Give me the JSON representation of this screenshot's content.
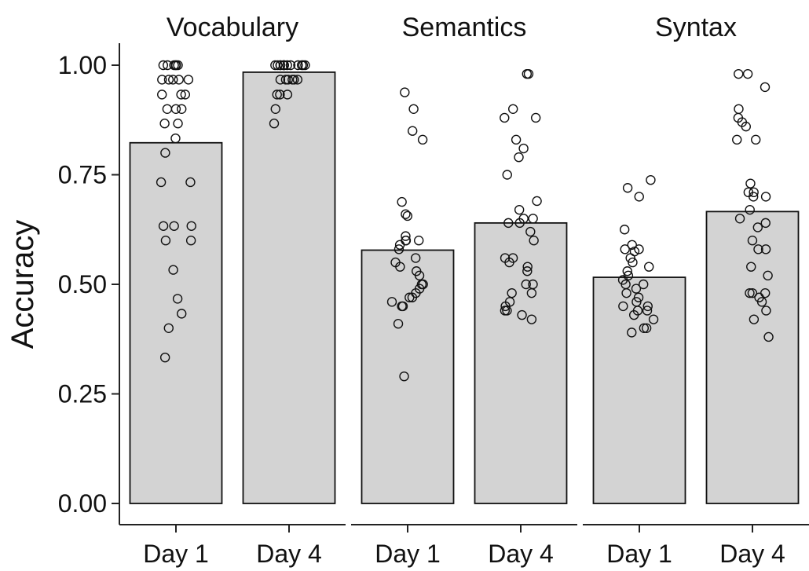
{
  "chart_data": {
    "type": "bar",
    "ylabel": "Accuracy",
    "ylim": [
      0,
      1.0
    ],
    "yticks": [
      0.0,
      0.25,
      0.5,
      0.75,
      1.0
    ],
    "ytick_labels": [
      "0.00",
      "0.25",
      "0.50",
      "0.75",
      "1.00"
    ],
    "grid": false,
    "bar_color": "#d3d3d3",
    "point_style": "open-circle",
    "panels": [
      {
        "title": "Vocabulary",
        "categories": [
          "Day 1",
          "Day 4"
        ],
        "values": [
          0.823,
          0.984
        ],
        "points": [
          [
            1.0,
            1.0,
            1.0,
            1.0,
            1.0,
            1.0,
            0.967,
            0.967,
            0.967,
            0.967,
            0.967,
            0.933,
            0.933,
            0.933,
            0.9,
            0.9,
            0.9,
            0.867,
            0.867,
            0.833,
            0.8,
            0.733,
            0.733,
            0.633,
            0.633,
            0.633,
            0.6,
            0.6,
            0.533,
            0.467,
            0.433,
            0.4,
            0.333
          ],
          [
            1.0,
            1.0,
            1.0,
            1.0,
            1.0,
            1.0,
            1.0,
            1.0,
            1.0,
            1.0,
            1.0,
            1.0,
            1.0,
            0.967,
            0.967,
            0.967,
            0.967,
            0.967,
            0.967,
            0.933,
            0.933,
            0.933,
            0.9,
            0.867
          ]
        ]
      },
      {
        "title": "Semantics",
        "categories": [
          "Day 1",
          "Day 4"
        ],
        "values": [
          0.578,
          0.64
        ],
        "points": [
          [
            0.938,
            0.9,
            0.85,
            0.83,
            0.688,
            0.66,
            0.656,
            0.61,
            0.6,
            0.6,
            0.6,
            0.59,
            0.58,
            0.56,
            0.55,
            0.54,
            0.53,
            0.52,
            0.5,
            0.5,
            0.49,
            0.48,
            0.47,
            0.47,
            0.46,
            0.45,
            0.45,
            0.41,
            0.29
          ],
          [
            0.98,
            0.98,
            0.9,
            0.88,
            0.88,
            0.83,
            0.81,
            0.79,
            0.75,
            0.69,
            0.67,
            0.65,
            0.65,
            0.64,
            0.64,
            0.62,
            0.6,
            0.56,
            0.56,
            0.55,
            0.54,
            0.53,
            0.5,
            0.5,
            0.48,
            0.48,
            0.46,
            0.45,
            0.44,
            0.44,
            0.43,
            0.42
          ]
        ]
      },
      {
        "title": "Syntax",
        "categories": [
          "Day 1",
          "Day 4"
        ],
        "values": [
          0.516,
          0.666
        ],
        "points": [
          [
            0.738,
            0.72,
            0.7,
            0.625,
            0.59,
            0.58,
            0.58,
            0.575,
            0.56,
            0.55,
            0.54,
            0.53,
            0.52,
            0.51,
            0.5,
            0.5,
            0.49,
            0.48,
            0.47,
            0.46,
            0.45,
            0.45,
            0.44,
            0.44,
            0.43,
            0.42,
            0.4,
            0.4,
            0.39
          ],
          [
            0.98,
            0.98,
            0.95,
            0.9,
            0.88,
            0.87,
            0.86,
            0.83,
            0.83,
            0.73,
            0.71,
            0.71,
            0.7,
            0.7,
            0.67,
            0.65,
            0.64,
            0.63,
            0.6,
            0.58,
            0.58,
            0.54,
            0.52,
            0.48,
            0.48,
            0.48,
            0.47,
            0.46,
            0.44,
            0.42,
            0.38
          ]
        ]
      }
    ]
  }
}
